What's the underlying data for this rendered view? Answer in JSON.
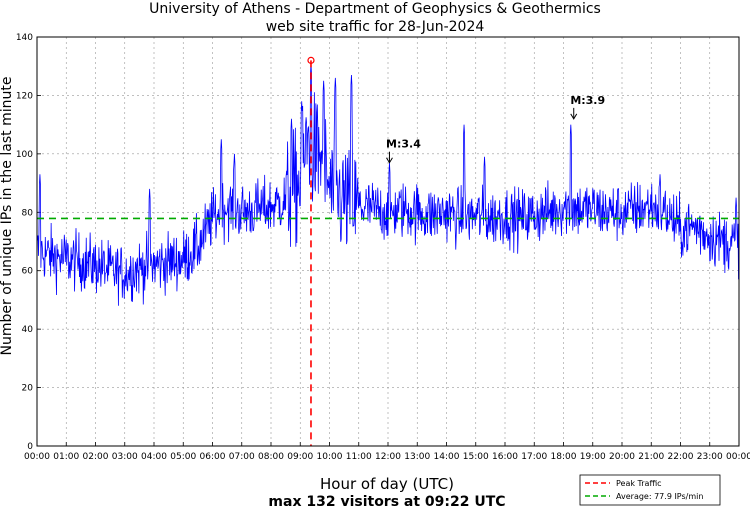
{
  "chart_data": {
    "type": "line",
    "title_line1": "University of Athens - Department of Geophysics & Geothermics",
    "title_line2": "web site traffic for 28-Jun-2024",
    "xlabel": "Hour of day (UTC)",
    "xlabel_sub": "max 132 visitors at 09:22 UTC",
    "ylabel": "Number of unique IPs in the last minute",
    "ylim": [
      0,
      140
    ],
    "yticks": [
      "0",
      "20",
      "40",
      "60",
      "80",
      "100",
      "120",
      "140"
    ],
    "ytick_values": [
      0,
      20,
      40,
      60,
      80,
      100,
      120,
      140
    ],
    "xlim_hours": [
      0,
      24
    ],
    "xticks": [
      "00:00",
      "01:00",
      "02:00",
      "03:00",
      "04:00",
      "05:00",
      "06:00",
      "07:00",
      "08:00",
      "09:00",
      "10:00",
      "11:00",
      "12:00",
      "13:00",
      "14:00",
      "15:00",
      "16:00",
      "17:00",
      "18:00",
      "19:00",
      "20:00",
      "21:00",
      "22:00",
      "23:00",
      "00:00"
    ],
    "grid": true,
    "series_color": "#0000ff",
    "series_hourly_x": [
      0,
      0.5,
      1,
      1.5,
      2,
      2.5,
      3,
      3.5,
      4,
      4.5,
      5,
      5.5,
      6,
      6.5,
      7,
      7.5,
      8,
      8.5,
      9,
      9.25,
      9.5,
      9.75,
      10,
      10.5,
      11,
      11.5,
      12,
      12.5,
      13,
      13.5,
      14,
      14.5,
      15,
      15.5,
      16,
      16.5,
      17,
      17.5,
      18,
      18.5,
      19,
      19.5,
      20,
      20.5,
      21,
      21.5,
      22,
      22.5,
      23,
      23.5,
      24
    ],
    "series_hourly_y": [
      67,
      65,
      64,
      63,
      62,
      60,
      59,
      61,
      62,
      63,
      64,
      68,
      78,
      82,
      80,
      81,
      82,
      84,
      90,
      105,
      100,
      98,
      88,
      84,
      82,
      81,
      80,
      81,
      80,
      79,
      80,
      78,
      79,
      78,
      79,
      78,
      79,
      80,
      82,
      81,
      81,
      80,
      80,
      81,
      82,
      80,
      74,
      75,
      72,
      70,
      70
    ],
    "average": {
      "value": 77.9,
      "label": "Average: 77.9 IPs/min",
      "color": "#00aa00"
    },
    "peak": {
      "value": 132,
      "hour": 9.367,
      "label": "Peak Traffic",
      "color": "#ff0000"
    },
    "annotations": [
      {
        "text": "M:3.4",
        "hour": 12.05,
        "value": 98
      },
      {
        "text": "M:3.9",
        "hour": 18.35,
        "value": 113
      }
    ]
  }
}
